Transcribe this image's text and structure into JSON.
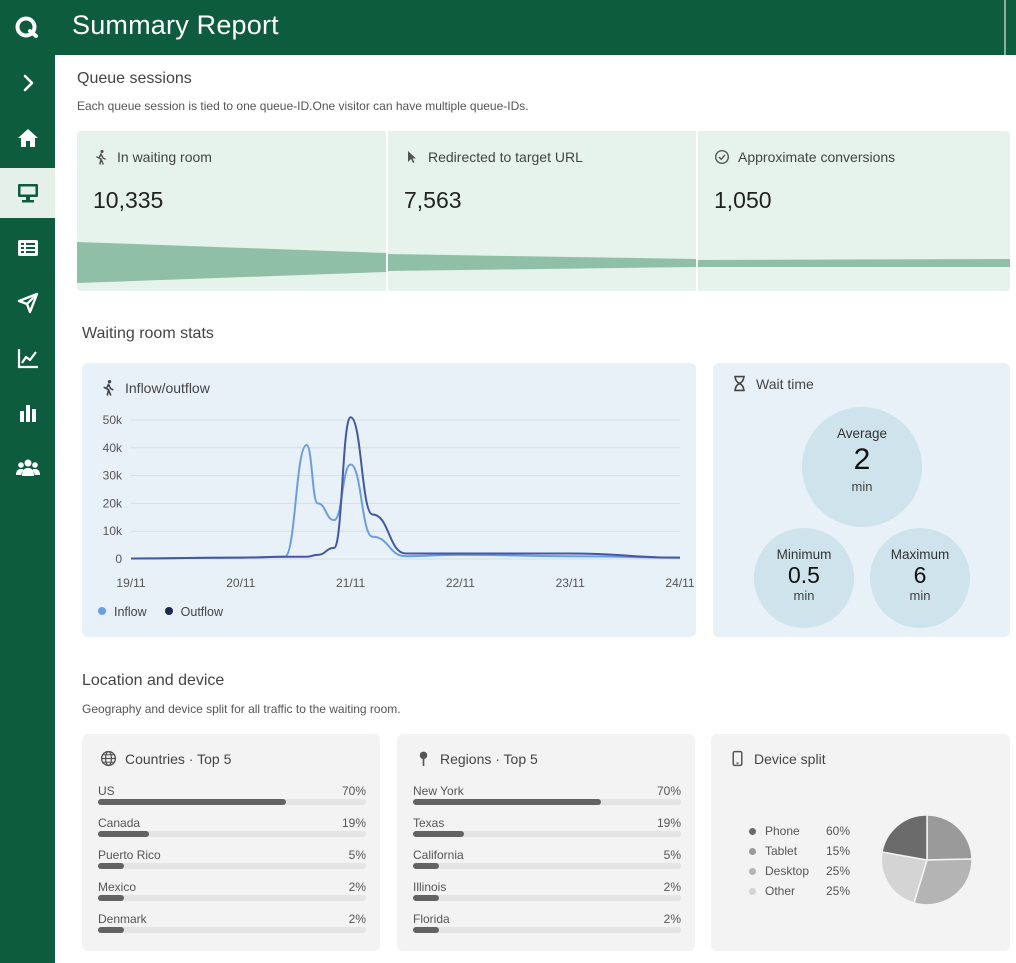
{
  "app": {
    "title": "Summary Report"
  },
  "sidebar": {
    "items": [
      {
        "icon": "chevron-right-icon"
      },
      {
        "icon": "home-icon"
      },
      {
        "icon": "monitor-icon",
        "active": true
      },
      {
        "icon": "list-icon"
      },
      {
        "icon": "send-icon"
      },
      {
        "icon": "line-chart-icon"
      },
      {
        "icon": "bar-chart-icon"
      },
      {
        "icon": "users-icon"
      }
    ]
  },
  "queue": {
    "title": "Queue sessions",
    "subtitle": "Each queue session is tied to one queue-ID.One visitor can have multiple queue-IDs.",
    "metrics": [
      {
        "label": "In waiting room",
        "value": "10,335",
        "icon": "walking-icon"
      },
      {
        "label": "Redirected to target URL",
        "value": "7,563",
        "icon": "cursor-icon"
      },
      {
        "label": "Approximate conversions",
        "value": "1,050",
        "icon": "check-circle-icon"
      }
    ]
  },
  "waiting": {
    "title": "Waiting room stats",
    "flow": {
      "title": "Inflow/outflow",
      "legend": [
        "Inflow",
        "Outflow"
      ]
    },
    "wait_time": {
      "title": "Wait time",
      "average": {
        "label": "Average",
        "value": "2",
        "unit": "min"
      },
      "minimum": {
        "label": "Minimum",
        "value": "0.5",
        "unit": "min"
      },
      "maximum": {
        "label": "Maximum",
        "value": "6",
        "unit": "min"
      }
    }
  },
  "location": {
    "title": "Location and device",
    "subtitle": "Geography and device split for all traffic to the waiting room.",
    "countries": {
      "title": "Countries · Top 5",
      "items": [
        {
          "name": "US",
          "pct": "70%",
          "value": 70
        },
        {
          "name": "Canada",
          "pct": "19%",
          "value": 19
        },
        {
          "name": "Puerto Rico",
          "pct": "5%",
          "value": 5
        },
        {
          "name": "Mexico",
          "pct": "2%",
          "value": 2
        },
        {
          "name": "Denmark",
          "pct": "2%",
          "value": 2
        }
      ]
    },
    "regions": {
      "title": "Regions · Top 5",
      "items": [
        {
          "name": "New York",
          "pct": "70%",
          "value": 70
        },
        {
          "name": "Texas",
          "pct": "19%",
          "value": 19
        },
        {
          "name": "California",
          "pct": "5%",
          "value": 5
        },
        {
          "name": "Illinois",
          "pct": "2%",
          "value": 2
        },
        {
          "name": "Florida",
          "pct": "2%",
          "value": 2
        }
      ]
    },
    "devices": {
      "title": "Device split",
      "items": [
        {
          "name": "Phone",
          "pct": "60%",
          "color": "#6b6b6b"
        },
        {
          "name": "Tablet",
          "pct": "15%",
          "color": "#9a9a9a"
        },
        {
          "name": "Desktop",
          "pct": "25%",
          "color": "#b4b4b4"
        },
        {
          "name": "Other",
          "pct": "25%",
          "color": "#d4d4d4"
        }
      ]
    }
  },
  "colors": {
    "brand": "#0d5c3e",
    "inflow": "#6a9ee3",
    "outflow": "#4457a6",
    "funnel": "#8fbfa6"
  },
  "chart_data": {
    "type": "line",
    "title": "Inflow/outflow",
    "xlabel": "",
    "ylabel": "",
    "x_ticks": [
      "19/11",
      "20/11",
      "21/11",
      "22/11",
      "23/11",
      "24/11"
    ],
    "y_ticks": [
      "0",
      "10k",
      "20k",
      "30k",
      "40k",
      "50k"
    ],
    "ylim": [
      0,
      50000
    ],
    "grid": true,
    "legend_position": "bottom-left",
    "x": [
      0,
      1,
      1.4,
      1.6,
      1.7,
      1.85,
      2.0,
      2.2,
      2.5,
      3.0,
      4.0,
      5.0
    ],
    "series": [
      {
        "name": "Inflow",
        "values": [
          200,
          500,
          800,
          41000,
          20000,
          14000,
          34000,
          8000,
          1000,
          1500,
          1000,
          500
        ]
      },
      {
        "name": "Outflow",
        "values": [
          200,
          500,
          800,
          800,
          1500,
          4000,
          51000,
          16000,
          2000,
          2000,
          2000,
          500
        ]
      }
    ]
  }
}
